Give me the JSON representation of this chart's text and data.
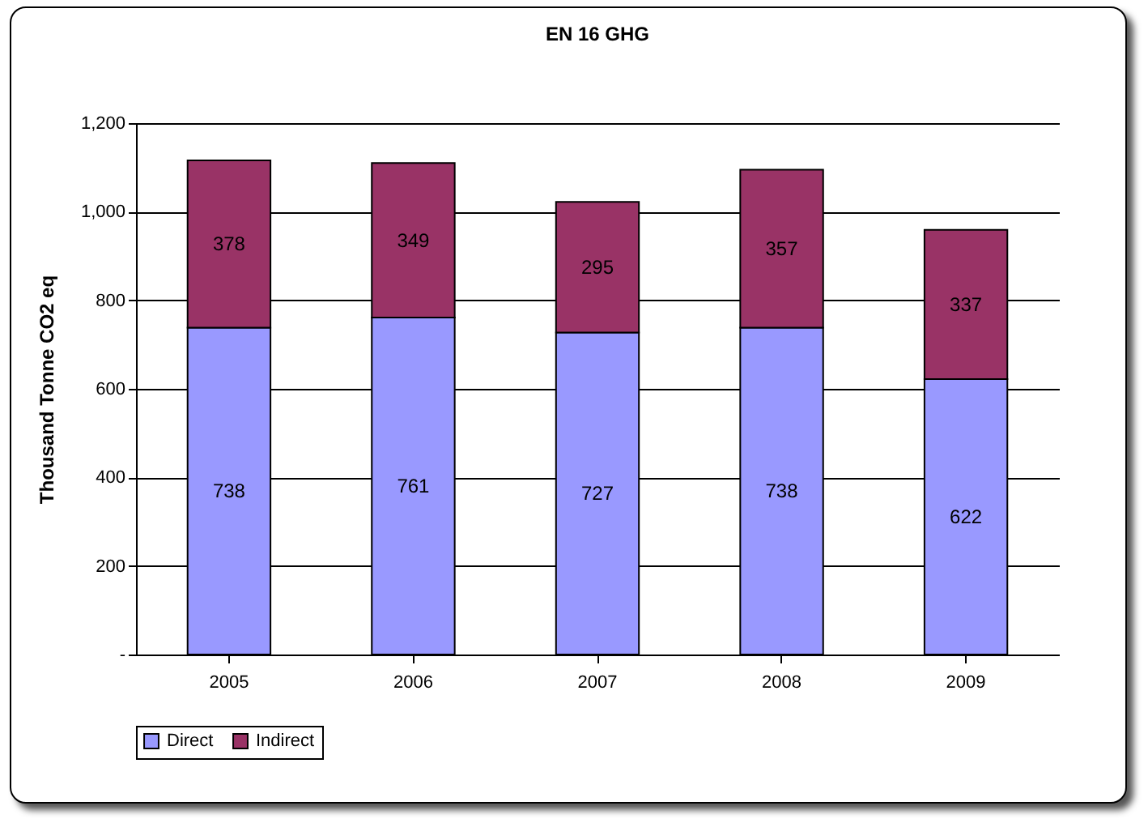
{
  "chart_data": {
    "type": "bar",
    "title": "EN 16 GHG",
    "ylabel": "Thousand Tonne CO2 eq",
    "categories": [
      "2005",
      "2006",
      "2007",
      "2008",
      "2009"
    ],
    "series": [
      {
        "name": "Direct",
        "color": "#9999ff",
        "values": [
          738,
          761,
          727,
          738,
          622
        ]
      },
      {
        "name": "Indirect",
        "color": "#993366",
        "values": [
          378,
          349,
          295,
          357,
          337
        ]
      }
    ],
    "stacked": true,
    "data_labels": true,
    "grid": "y",
    "legend": "bottom",
    "ylim": [
      0,
      1200
    ],
    "yticks": [
      {
        "value": 0,
        "label": "-"
      },
      200,
      400,
      600,
      800,
      {
        "value": 1000,
        "label": "1,000"
      },
      {
        "value": 1200,
        "label": "1,200"
      }
    ]
  }
}
